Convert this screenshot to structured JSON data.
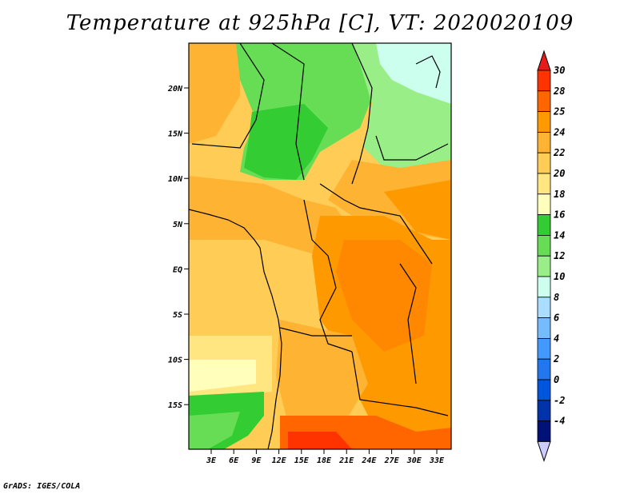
{
  "title": "Temperature at 925hPa [C], VT: 2020020109",
  "credit": "GrADS: IGES/COLA",
  "map": {
    "lat_ticks": [
      "20N",
      "15N",
      "10N",
      "5N",
      "EQ",
      "5S",
      "10S",
      "15S"
    ],
    "lon_ticks": [
      "3E",
      "6E",
      "9E",
      "12E",
      "15E",
      "18E",
      "21E",
      "24E",
      "27E",
      "30E",
      "33E"
    ]
  },
  "colorbar": {
    "labels": [
      "30",
      "28",
      "25",
      "24",
      "22",
      "20",
      "18",
      "16",
      "14",
      "12",
      "10",
      "8",
      "6",
      "4",
      "2",
      "0",
      "-2",
      "-4"
    ],
    "colors": [
      "#ff3300",
      "#ff6600",
      "#ff9900",
      "#ffb333",
      "#ffcc55",
      "#ffe680",
      "#ffffbb",
      "#33cc33",
      "#66dd55",
      "#99ee88",
      "#ccffee",
      "#aaddff",
      "#77bbff",
      "#4499ff",
      "#2277ee",
      "#0055dd",
      "#0033aa",
      "#001177"
    ],
    "top_arrow_color": "#e81a1a",
    "bottom_arrow_color": "#ccccff"
  }
}
